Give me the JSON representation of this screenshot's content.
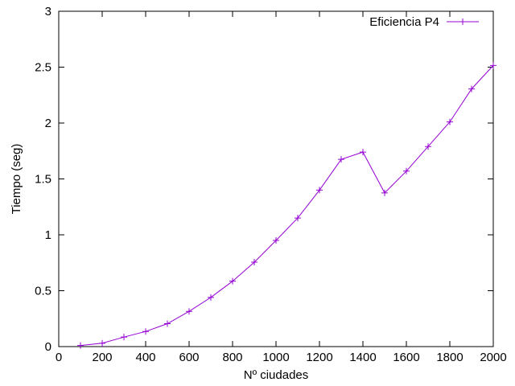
{
  "chart_data": {
    "type": "line",
    "title": "",
    "xlabel": "Nº ciudades",
    "ylabel": "Tiempo (seg)",
    "xlim": [
      0,
      2000
    ],
    "ylim": [
      0,
      3
    ],
    "xticks": [
      "0",
      "200",
      "400",
      "600",
      "800",
      "1000",
      "1200",
      "1400",
      "1600",
      "1800",
      "2000"
    ],
    "yticks": [
      "0",
      "0.5",
      "1",
      "1.5",
      "2",
      "2.5",
      "3"
    ],
    "grid": false,
    "legend_position": "top-right",
    "series": [
      {
        "name": "Eficiencia P4",
        "color": "#9400d3",
        "marker": "plus",
        "x": [
          100,
          200,
          300,
          400,
          500,
          600,
          700,
          800,
          900,
          1000,
          1100,
          1200,
          1300,
          1400,
          1500,
          1600,
          1700,
          1800,
          1900,
          2000
        ],
        "y": [
          0.01,
          0.03,
          0.085,
          0.135,
          0.205,
          0.315,
          0.44,
          0.585,
          0.755,
          0.95,
          1.15,
          1.4,
          1.675,
          1.74,
          1.375,
          1.57,
          1.79,
          2.01,
          2.305,
          2.515
        ]
      }
    ]
  }
}
